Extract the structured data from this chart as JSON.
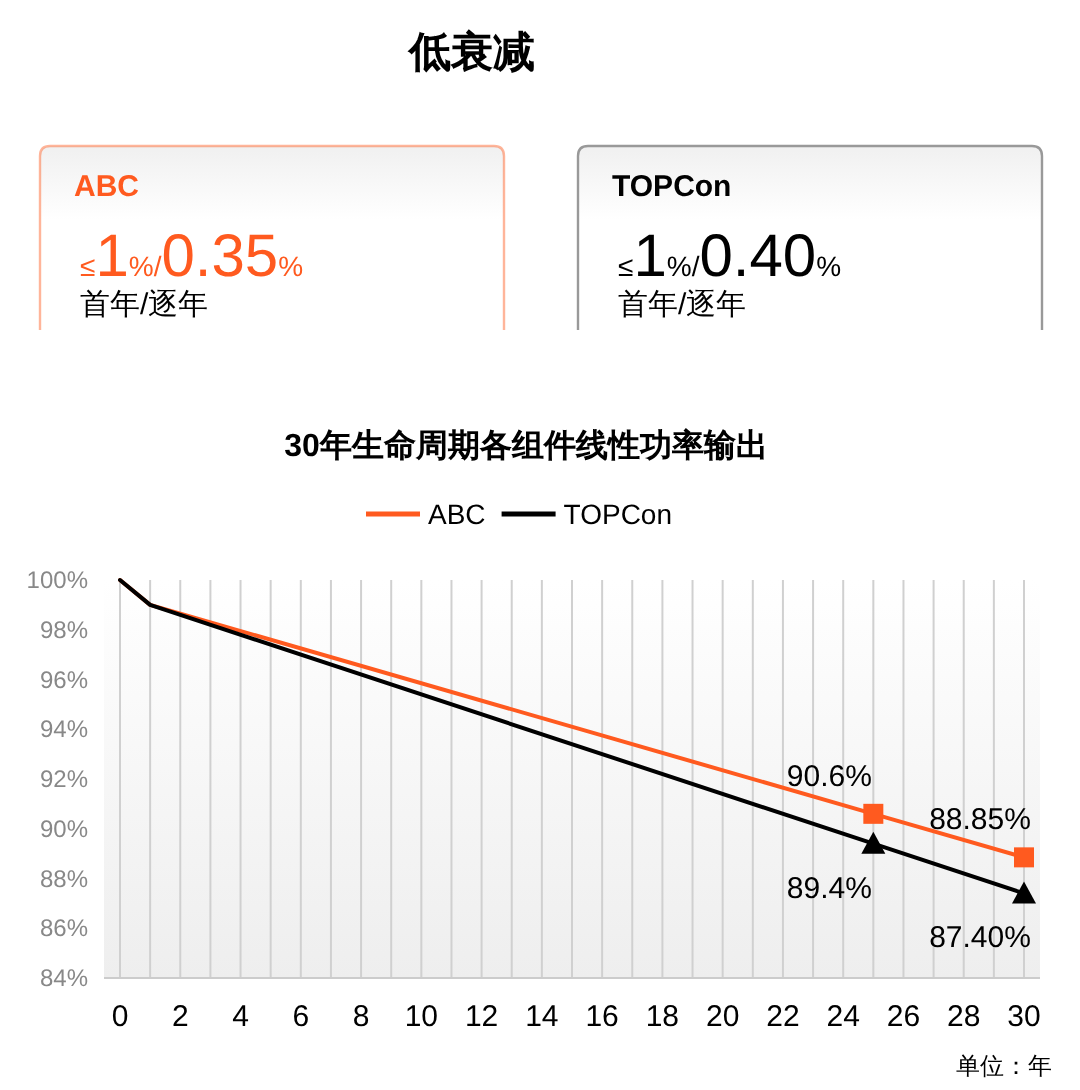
{
  "chart_data": [
    {
      "type": "other",
      "title": "低衰减"
    },
    {
      "type": "other",
      "title": "ABC",
      "color": "#ff5a1f",
      "annotations": [
        "≤1%/0.35%",
        "首年/逐年"
      ]
    },
    {
      "type": "other",
      "title": "TOPCon",
      "color": "#000000",
      "annotations": [
        "≤1%/0.40%",
        "首年/逐年"
      ]
    },
    {
      "type": "line",
      "title": "30年生命周期各组件线性功率输出",
      "xlabel": "单位：年",
      "legend": "top",
      "grid": "x",
      "xlim": [
        0,
        30
      ],
      "ylim": [
        84,
        100
      ],
      "xticks": [
        0,
        {
          "value": 1,
          "label": null
        },
        2,
        {
          "value": 3,
          "label": null
        },
        4,
        {
          "value": 5,
          "label": null
        },
        6,
        {
          "value": 7,
          "label": null
        },
        8,
        {
          "value": 9,
          "label": null
        },
        10,
        {
          "value": 11,
          "label": null
        },
        12,
        {
          "value": 13,
          "label": null
        },
        14,
        {
          "value": 15,
          "label": null
        },
        16,
        {
          "value": 17,
          "label": null
        },
        18,
        {
          "value": 19,
          "label": null
        },
        20,
        {
          "value": 21,
          "label": null
        },
        22,
        {
          "value": 23,
          "label": null
        },
        24,
        {
          "value": 25,
          "label": null
        },
        26,
        {
          "value": 27,
          "label": null
        },
        28,
        {
          "value": 29,
          "label": null
        },
        30
      ],
      "yticks": [
        {
          "value": 84,
          "label": "84%"
        },
        {
          "value": 86,
          "label": "86%"
        },
        {
          "value": 88,
          "label": "88%"
        },
        {
          "value": 90,
          "label": "90%"
        },
        {
          "value": 92,
          "label": "92%"
        },
        {
          "value": 94,
          "label": "94%"
        },
        {
          "value": 96,
          "label": "96%"
        },
        {
          "value": 98,
          "label": "98%"
        },
        {
          "value": 100,
          "label": "100%"
        }
      ],
      "series": [
        {
          "name": "ABC",
          "color": "#ff5a1f",
          "marker": "square",
          "x": [
            0,
            1,
            25,
            30
          ],
          "values": [
            100,
            99,
            90.6,
            88.85
          ],
          "value_labels": [
            null,
            null,
            "90.6%",
            "88.85%"
          ]
        },
        {
          "name": "TOPCon",
          "color": "#000000",
          "marker": "triangle",
          "x": [
            0,
            1,
            25,
            30
          ],
          "values": [
            100,
            99,
            89.4,
            87.4
          ],
          "value_labels": [
            null,
            null,
            "89.4%",
            "87.40%"
          ]
        }
      ]
    }
  ]
}
